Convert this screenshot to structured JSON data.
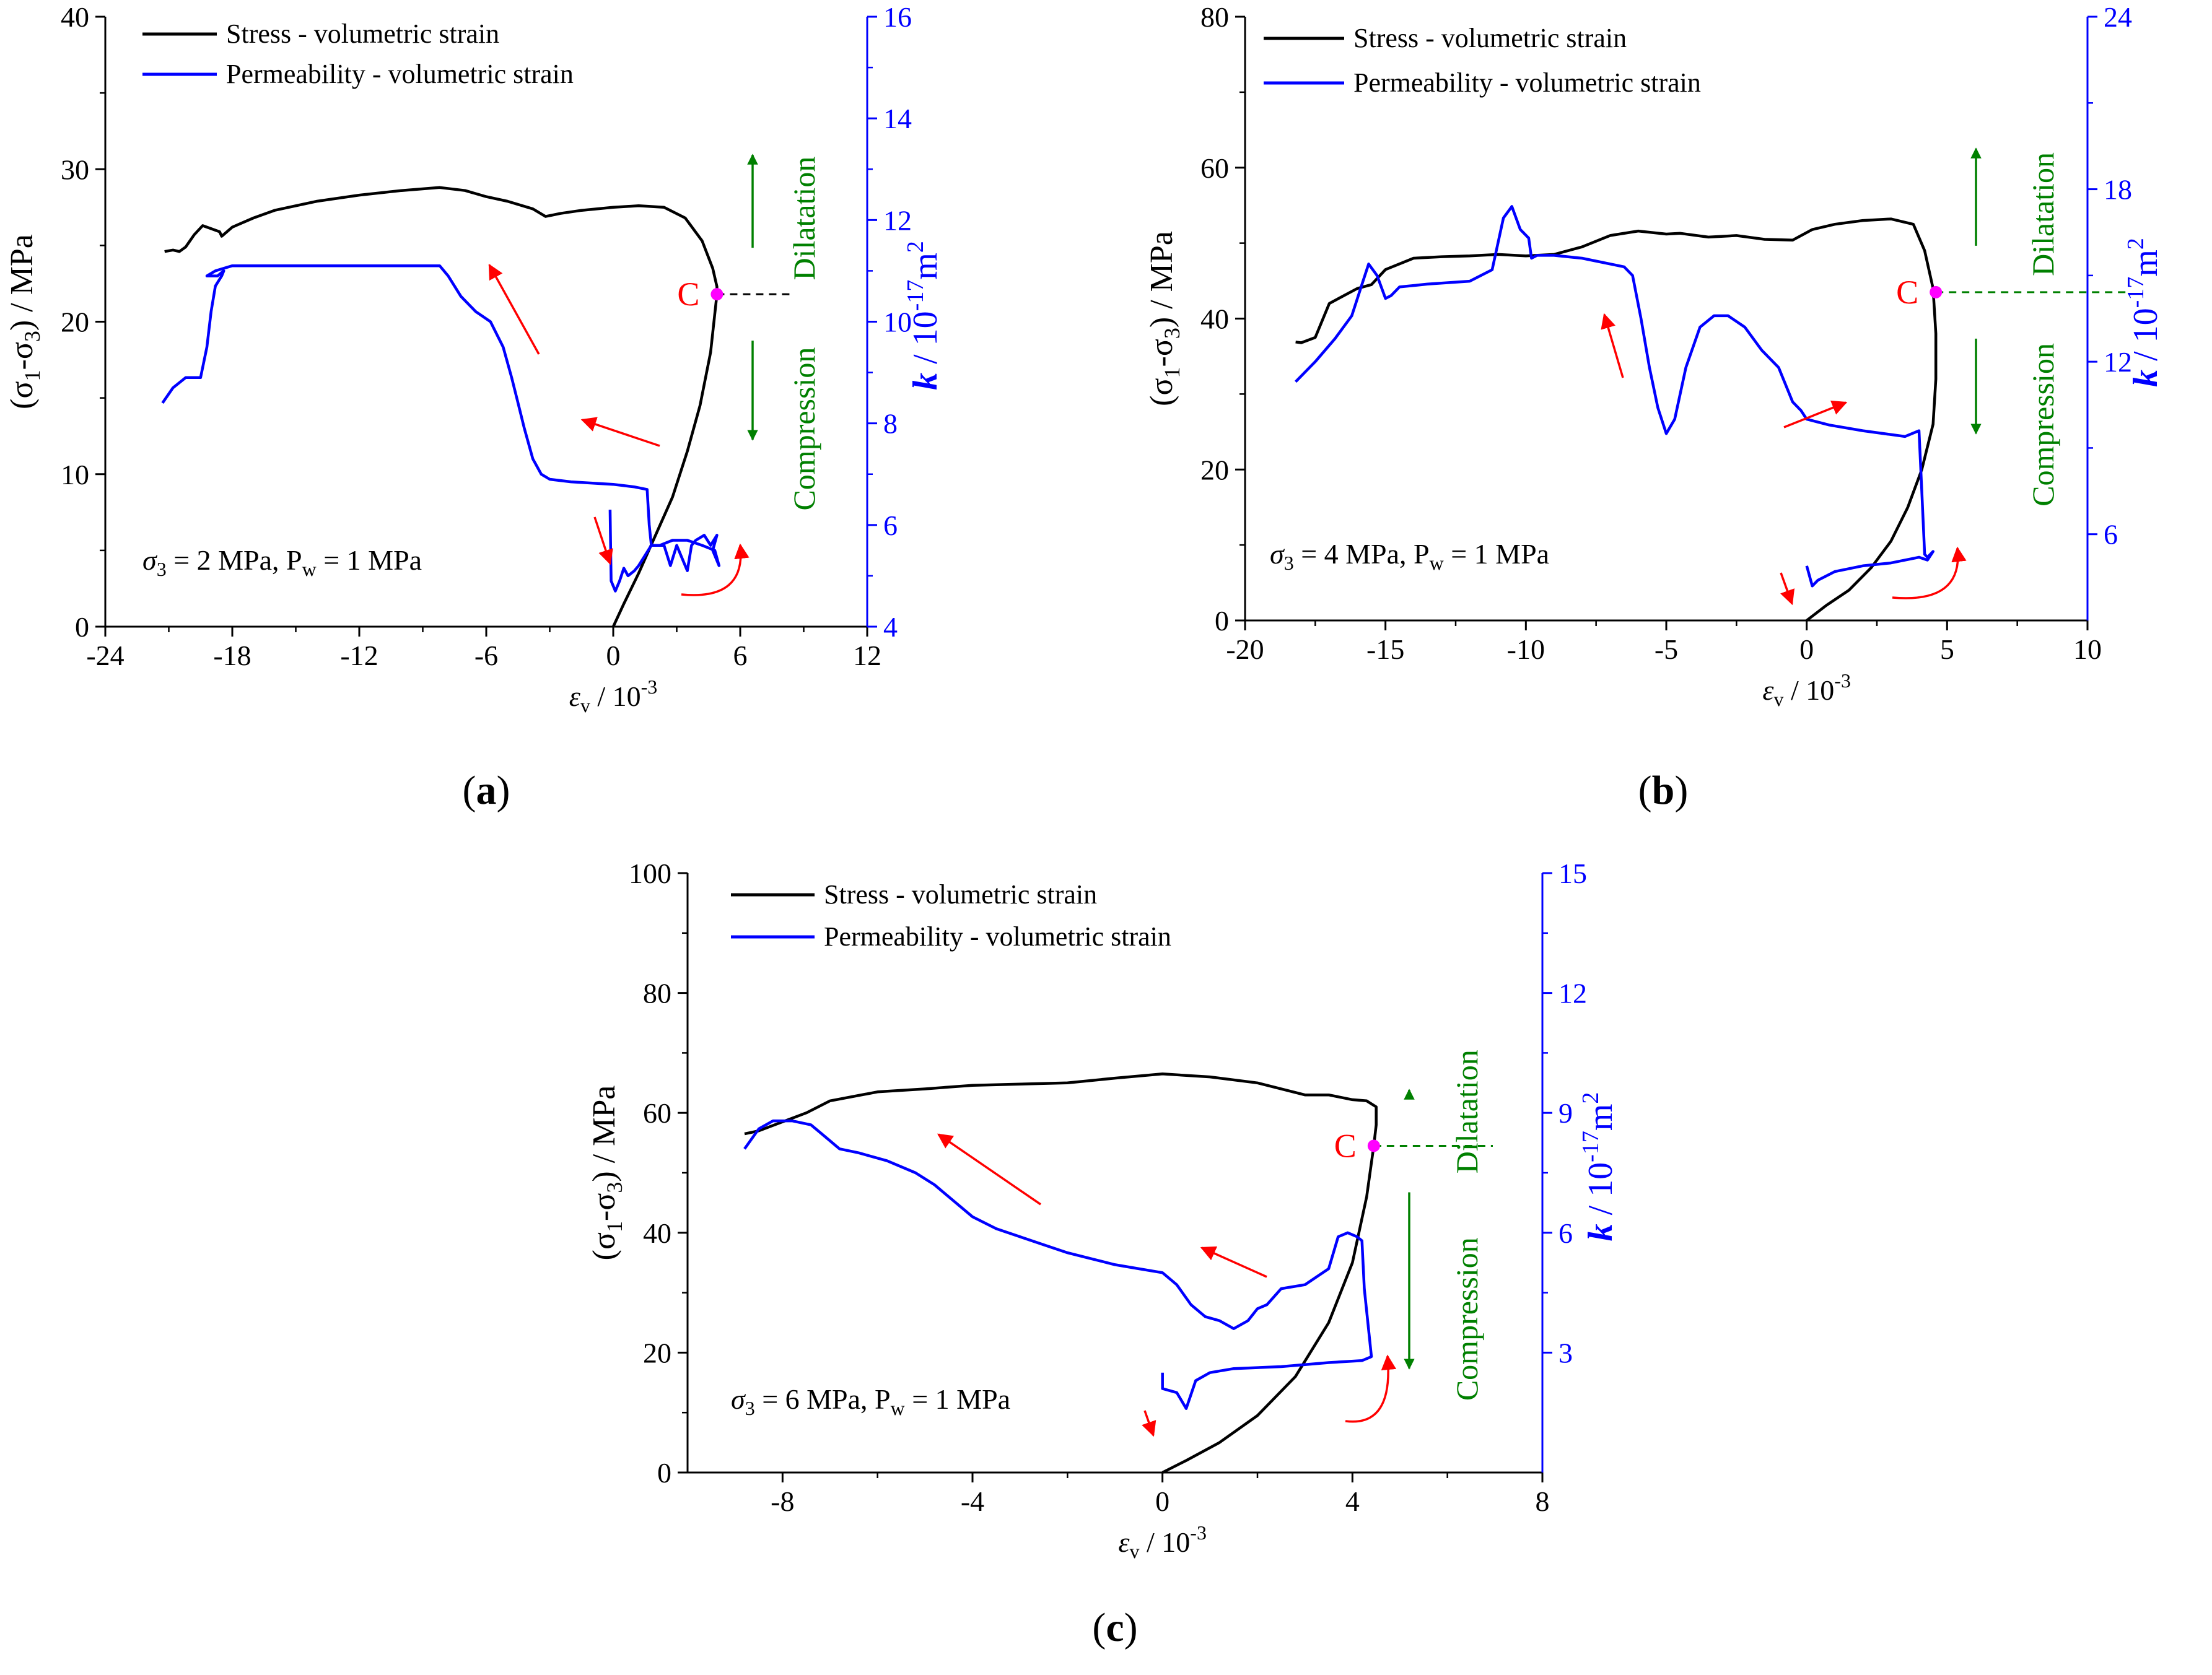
{
  "figure": {
    "legend_stress": "Stress - volumetric strain",
    "legend_perm": "Permeability - volumetric strain",
    "xlabel_main": "ε",
    "xlabel_sub": "v",
    "xlabel_tail": " / 10",
    "xlabel_exp": "-3",
    "ylabel_left": "(σ1-σ3) / MPa",
    "ylabel_left_parts": {
      "open": "(σ",
      "sub1": "1",
      "mid": "-σ",
      "sub2": "3",
      "close": ") / MPa"
    },
    "ylabel_right_parts": {
      "k": "k",
      "mid": " / 10",
      "exp": "-17",
      "unit": "m",
      "exp2": "2"
    },
    "dilatation": "Dilatation",
    "compression": "Compression",
    "point_label": "C",
    "colors": {
      "stress": "#000000",
      "perm": "#0000ff",
      "arrow": "#ff0000",
      "green": "#008000",
      "point": "#ff00ff",
      "red_text": "#ff0000"
    }
  },
  "chart_data": [
    {
      "panel_label": "(a)",
      "panel_letter": "a",
      "type": "line",
      "condition": {
        "sigma": "σ",
        "sub3": "3",
        "text1": " = 2 MPa, P",
        "subw": "w",
        "text2": " = 1 MPa"
      },
      "xlim": [
        -24,
        12
      ],
      "xticks": [
        -24,
        -18,
        -12,
        -6,
        0,
        6,
        12
      ],
      "ylim": [
        0,
        40
      ],
      "yticks": [
        0,
        10,
        20,
        30,
        40
      ],
      "y2lim": [
        4,
        16
      ],
      "y2ticks": [
        4,
        6,
        8,
        10,
        12,
        14,
        16
      ],
      "point_C": {
        "x": 4.9,
        "y": 21.8
      },
      "series": [
        {
          "name": "Stress - volumetric strain",
          "axis": "left",
          "x": [
            0,
            0.5,
            1.2,
            2,
            2.8,
            3.5,
            4.1,
            4.6,
            4.9,
            4.9,
            4.7,
            4.2,
            3.4,
            2.4,
            1.2,
            0,
            -1.5,
            -2.5,
            -3.2,
            -3.8,
            -5,
            -6,
            -7,
            -8.2,
            -10,
            -12,
            -14,
            -16,
            -17,
            -18,
            -18.5,
            -18.6,
            -19,
            -19.4,
            -19.8,
            -20.2,
            -20.5,
            -20.8,
            -21.2
          ],
          "y": [
            0,
            1.5,
            3.5,
            6,
            8.5,
            11.5,
            14.5,
            18,
            21.8,
            22.3,
            23.5,
            25.3,
            26.8,
            27.5,
            27.6,
            27.5,
            27.3,
            27.1,
            26.9,
            27.4,
            27.9,
            28.2,
            28.6,
            28.8,
            28.6,
            28.3,
            27.9,
            27.3,
            26.8,
            26.2,
            25.6,
            25.9,
            26.1,
            26.3,
            25.7,
            24.9,
            24.6,
            24.7,
            24.6
          ]
        },
        {
          "name": "Permeability - volumetric strain",
          "axis": "right",
          "x": [
            -21.3,
            -20.8,
            -20.2,
            -19.5,
            -19.2,
            -19.0,
            -18.8,
            -18.5,
            -18.4,
            -18.7,
            -19.2,
            -18.8,
            -18,
            -16,
            -12,
            -9,
            -8.2,
            -7.8,
            -7.2,
            -6.5,
            -5.8,
            -5.2,
            -4.8,
            -4.5,
            -4.2,
            -3.8,
            -3.4,
            -3,
            -2,
            0,
            1,
            1.6,
            1.7,
            1.8,
            2.2,
            2.8,
            3.5,
            4.2,
            4.8,
            5.0,
            4.7,
            4.9,
            4.6,
            4.3,
            3.9,
            3.7,
            3.5,
            3.2,
            3.0,
            2.7,
            2.4,
            2.1,
            1.8,
            1.5,
            1.2,
            1.0,
            0.7,
            0.5,
            0.3,
            0.1,
            -0.1,
            -0.15
          ],
          "y": [
            8.4,
            8.7,
            8.9,
            8.9,
            9.5,
            10.2,
            10.7,
            10.9,
            11.0,
            10.9,
            10.9,
            11.0,
            11.1,
            11.1,
            11.1,
            11.1,
            11.1,
            10.9,
            10.5,
            10.2,
            10.0,
            9.5,
            8.9,
            8.4,
            7.9,
            7.3,
            7.0,
            6.9,
            6.85,
            6.8,
            6.75,
            6.7,
            6.0,
            5.6,
            5.6,
            5.7,
            5.7,
            5.6,
            5.5,
            5.2,
            5.5,
            5.8,
            5.6,
            5.8,
            5.7,
            5.6,
            5.1,
            5.4,
            5.6,
            5.2,
            5.6,
            5.6,
            5.6,
            5.4,
            5.2,
            5.1,
            5.0,
            5.15,
            4.9,
            4.7,
            4.9,
            6.3
          ]
        }
      ]
    },
    {
      "panel_label": "(b)",
      "panel_letter": "b",
      "type": "line",
      "condition": {
        "sigma": "σ",
        "sub3": "3",
        "text1": " = 4 MPa, P",
        "subw": "w",
        "text2": " = 1 MPa"
      },
      "xlim": [
        -20,
        10
      ],
      "xticks": [
        -20,
        -15,
        -10,
        -5,
        0,
        5,
        10
      ],
      "ylim": [
        0,
        80
      ],
      "yticks": [
        0,
        20,
        40,
        60,
        80
      ],
      "y2lim": [
        3,
        24
      ],
      "y2ticks": [
        6,
        12,
        18,
        24
      ],
      "point_C": {
        "x": 4.6,
        "y": 43.5
      },
      "series": [
        {
          "name": "Stress - volumetric strain",
          "axis": "left",
          "x": [
            0,
            0.7,
            1.5,
            2.3,
            3.0,
            3.6,
            4.1,
            4.5,
            4.6,
            4.6,
            4.5,
            4.2,
            3.8,
            3,
            2,
            1,
            0.2,
            -0.5,
            -1.5,
            -2.5,
            -3.5,
            -4.5,
            -5,
            -6,
            -7,
            -8,
            -9,
            -10,
            -11,
            -12,
            -13,
            -14,
            -15,
            -15.5,
            -16,
            -16.5,
            -17,
            -17.5,
            -18,
            -18.2
          ],
          "y": [
            0,
            2,
            4,
            7,
            10.5,
            15,
            20,
            26,
            32,
            38,
            44,
            49,
            52.5,
            53.2,
            53,
            52.5,
            51.8,
            50.4,
            50.5,
            51,
            50.8,
            51.3,
            51.2,
            51.6,
            51,
            49.5,
            48.5,
            48.3,
            48.5,
            48.3,
            48.2,
            48.0,
            46.5,
            44.5,
            44.0,
            43.0,
            42.0,
            37.5,
            36.8,
            36.9
          ]
        },
        {
          "name": "Permeability - volumetric strain",
          "axis": "right",
          "x": [
            -18.2,
            -17.5,
            -16.8,
            -16.2,
            -15.8,
            -15.6,
            -15.3,
            -15.0,
            -14.8,
            -14.5,
            -13.5,
            -12,
            -11.2,
            -10.8,
            -10.5,
            -10.2,
            -9.9,
            -9.8,
            -9.6,
            -9.0,
            -8,
            -6.5,
            -6.2,
            -5.9,
            -5.6,
            -5.3,
            -5.0,
            -4.7,
            -4.3,
            -3.8,
            -3.3,
            -2.8,
            -2.2,
            -1.6,
            -1.0,
            -0.5,
            -0.2,
            0,
            0.8,
            2,
            3.5,
            4.0,
            4.1,
            4.2,
            4.3,
            4.5,
            4.3,
            4.0,
            3.0,
            2.0,
            1.0,
            0.6,
            0.4,
            0.2,
            0.0
          ],
          "y": [
            11.3,
            12.0,
            12.8,
            13.6,
            14.8,
            15.4,
            15.0,
            14.2,
            14.3,
            14.6,
            14.7,
            14.8,
            15.2,
            17.0,
            17.4,
            16.6,
            16.3,
            15.6,
            15.7,
            15.7,
            15.6,
            15.3,
            15.0,
            13.5,
            11.8,
            10.4,
            9.5,
            10.0,
            11.8,
            13.2,
            13.6,
            13.6,
            13.2,
            12.4,
            11.8,
            10.6,
            10.3,
            10.0,
            9.8,
            9.6,
            9.4,
            9.6,
            7.5,
            5.3,
            5.2,
            5.4,
            5.1,
            5.2,
            5.0,
            4.9,
            4.7,
            4.5,
            4.4,
            4.2,
            4.9
          ]
        }
      ]
    },
    {
      "panel_label": "(c)",
      "panel_letter": "c",
      "type": "line",
      "condition": {
        "sigma": "σ",
        "sub3": "3",
        "text1": " = 6 MPa, P",
        "subw": "w",
        "text2": " = 1 MPa"
      },
      "xlim": [
        -10,
        8
      ],
      "xticks": [
        -8,
        -4,
        0,
        4,
        8
      ],
      "ylim": [
        0,
        100
      ],
      "yticks": [
        0,
        20,
        40,
        60,
        80,
        100
      ],
      "y2lim": [
        0,
        15
      ],
      "y2ticks": [
        3,
        6,
        9,
        12,
        15
      ],
      "point_C": {
        "x": 4.45,
        "y": 54.5
      },
      "series": [
        {
          "name": "Stress - volumetric strain",
          "axis": "left",
          "x": [
            0,
            0.5,
            1.2,
            2,
            2.8,
            3.5,
            4.0,
            4.3,
            4.45,
            4.5,
            4.5,
            4.3,
            4.0,
            3.5,
            3,
            2,
            1,
            0,
            -1,
            -2,
            -3,
            -4,
            -5,
            -6,
            -7,
            -7.5,
            -8,
            -8.5,
            -8.8
          ],
          "y": [
            0,
            2,
            5,
            9.5,
            16,
            25,
            35,
            46,
            54.5,
            58,
            61,
            62,
            62.2,
            63,
            63,
            65,
            66,
            66.5,
            65.8,
            65,
            64.8,
            64.6,
            64,
            63.5,
            62,
            60,
            58.5,
            57,
            56.5
          ]
        },
        {
          "name": "Permeability - volumetric strain",
          "axis": "right",
          "x": [
            -8.8,
            -8.5,
            -8.2,
            -7.8,
            -7.4,
            -7.2,
            -7.0,
            -6.8,
            -6.4,
            -5.8,
            -5.2,
            -4.8,
            -4.4,
            -4,
            -3.5,
            -3,
            -2.5,
            -2,
            -1,
            -0.5,
            0,
            0.3,
            0.6,
            0.9,
            1.2,
            1.5,
            1.8,
            2.0,
            2.2,
            2.5,
            3,
            3.5,
            3.7,
            3.9,
            4.1,
            4.2,
            4.25,
            4.4,
            4.2,
            3.5,
            2.5,
            1.5,
            1.0,
            0.7,
            0.5,
            0.3,
            0,
            0
          ],
          "y": [
            8.1,
            8.6,
            8.8,
            8.8,
            8.7,
            8.5,
            8.3,
            8.1,
            8.0,
            7.8,
            7.5,
            7.2,
            6.8,
            6.4,
            6.1,
            5.9,
            5.7,
            5.5,
            5.2,
            5.1,
            5.0,
            4.7,
            4.2,
            3.9,
            3.8,
            3.6,
            3.8,
            4.1,
            4.2,
            4.6,
            4.7,
            5.1,
            5.9,
            6.0,
            5.9,
            5.8,
            4.6,
            2.9,
            2.8,
            2.75,
            2.65,
            2.6,
            2.5,
            2.3,
            1.6,
            2.0,
            2.1,
            2.5
          ]
        }
      ]
    }
  ]
}
